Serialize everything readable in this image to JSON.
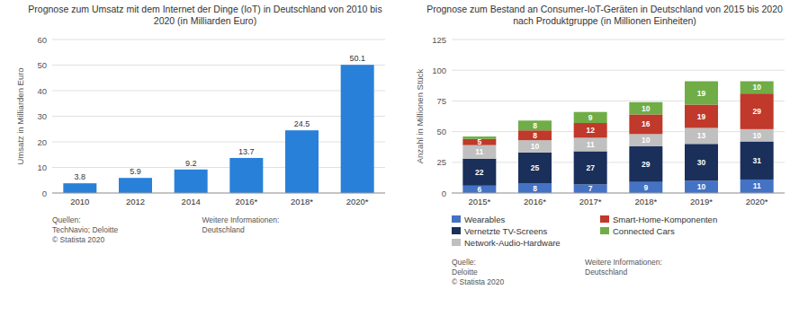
{
  "chart_data": [
    {
      "type": "bar",
      "title": "Prognose zum Umsatz mit dem Internet der Dinge (IoT) in Deutschland von 2010 bis\n2020 (in Milliarden Euro)",
      "ylabel": "Umsatz in Milliarden Euro",
      "categories": [
        "2010",
        "2012",
        "2014",
        "2016*",
        "2018*",
        "2020*"
      ],
      "values": [
        3.8,
        5.9,
        9.2,
        13.7,
        24.5,
        50.1
      ],
      "color": "#2980d9",
      "ylim": [
        0,
        60
      ],
      "yticks": [
        0,
        10,
        20,
        30,
        40,
        50,
        60
      ],
      "grid": true,
      "data_labels": true,
      "annotations": [
        "Quellen:\nTechNavio; Deloitte\n© Statista 2020",
        "Weitere Informationen:\nDeutschland"
      ]
    },
    {
      "type": "bar",
      "stacked": true,
      "title": "Prognose zum Bestand an Consumer-IoT-Geräten in Deutschland von 2015 bis 2020\nnach Produktgruppe (in Millionen Einheiten)",
      "ylabel": "Anzahl in Millionen Stück",
      "categories": [
        "2015*",
        "2016*",
        "2017*",
        "2018*",
        "2019*",
        "2020*"
      ],
      "series": [
        {
          "name": "Wearables",
          "color": "#4472c4",
          "values": [
            6,
            8,
            7,
            9,
            10,
            11
          ]
        },
        {
          "name": "Vernetzte TV-Screens",
          "color": "#1a2f5a",
          "values": [
            22,
            25,
            27,
            29,
            30,
            31
          ]
        },
        {
          "name": "Network-Audio-Hardware",
          "color": "#c0c0c0",
          "values": [
            11,
            10,
            11,
            10,
            13,
            10
          ]
        },
        {
          "name": "Smart-Home-Komponenten",
          "color": "#c0392b",
          "values": [
            5,
            8,
            12,
            16,
            19,
            29
          ]
        },
        {
          "name": "Connected Cars",
          "color": "#70ad47",
          "values": [
            2,
            8,
            9,
            10,
            19,
            10
          ],
          "value_labels": [
            null,
            "8",
            "9",
            "10",
            "19",
            "10"
          ]
        }
      ],
      "ylim": [
        0,
        125
      ],
      "yticks": [
        0,
        25,
        50,
        75,
        100,
        125
      ],
      "grid": true,
      "legend": "bottom",
      "data_labels": true,
      "annotations": [
        "Quelle:\nDeloitte\n© Statista 2020",
        "Weitere Informationen:\nDeutschland"
      ]
    }
  ]
}
